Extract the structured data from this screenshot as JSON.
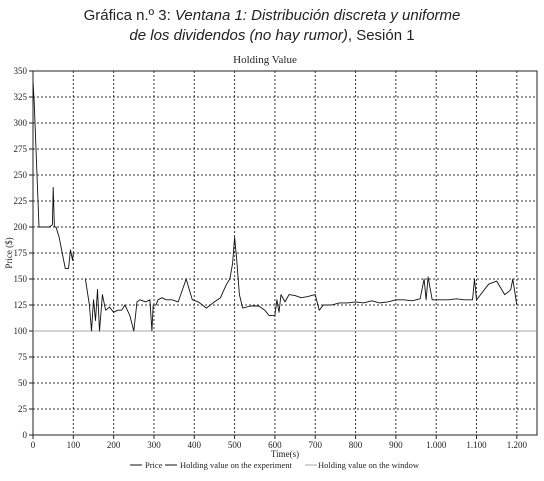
{
  "figure": {
    "line1_prefix": "Gráfica n.º 3: ",
    "line1_italic": "Ventana 1: Distribución discreta y uniforme",
    "line2_italic": "de los dividendos (no hay rumor)",
    "line2_suffix": ", Sesión 1"
  },
  "chart_data": {
    "type": "line",
    "title": "Holding Value",
    "xlabel": "Time(s)",
    "ylabel": "Price ($)",
    "xlim": [
      0,
      1250
    ],
    "ylim": [
      0,
      350
    ],
    "x_ticks": [
      0,
      100,
      200,
      300,
      400,
      500,
      600,
      700,
      800,
      900,
      1000,
      1100,
      1200
    ],
    "x_tick_labels": [
      "0",
      "100",
      "200",
      "300",
      "400",
      "500",
      "600",
      "700",
      "800",
      "900",
      "1.000",
      "1.100",
      "1.200"
    ],
    "y_ticks": [
      0,
      25,
      50,
      75,
      100,
      125,
      150,
      175,
      200,
      225,
      250,
      275,
      300,
      325,
      350
    ],
    "grid": true,
    "legend_position": "bottom",
    "series": [
      {
        "name": "Price",
        "color": "#111111",
        "x": [
          0,
          3,
          8,
          15,
          20,
          40,
          48,
          50,
          53,
          57,
          65,
          70,
          80,
          88,
          93,
          98,
          100
        ],
        "y": [
          340,
          320,
          270,
          200,
          200,
          200,
          202,
          238,
          200,
          200,
          190,
          180,
          160,
          160,
          178,
          168,
          175
        ]
      },
      {
        "name": "Holding value on the experiment",
        "color": "#111111",
        "x": [
          130,
          140,
          145,
          150,
          155,
          160,
          165,
          172,
          180,
          190,
          200,
          210,
          220,
          228,
          240,
          250,
          258,
          265,
          280,
          290,
          295,
          298,
          300,
          305,
          310,
          320,
          330,
          345,
          360,
          380,
          395,
          410,
          430,
          450,
          465,
          480,
          488,
          495,
          500,
          505,
          512,
          520,
          540,
          560,
          575,
          585,
          600,
          605,
          610,
          615,
          625,
          635,
          650,
          665,
          680,
          700,
          710,
          720,
          740,
          760,
          780,
          800,
          820,
          840,
          860,
          880,
          900,
          920,
          940,
          960,
          970,
          975,
          980,
          990,
          1010,
          1030,
          1050,
          1070,
          1090,
          1095,
          1100,
          1110,
          1130,
          1150,
          1170,
          1180,
          1185,
          1190,
          1200
        ],
        "y": [
          150,
          125,
          100,
          130,
          110,
          140,
          100,
          135,
          120,
          123,
          118,
          120,
          120,
          125,
          115,
          100,
          128,
          130,
          128,
          130,
          100,
          125,
          125,
          125,
          130,
          132,
          130,
          130,
          128,
          150,
          130,
          128,
          122,
          128,
          132,
          145,
          150,
          165,
          190,
          170,
          135,
          122,
          124,
          124,
          120,
          115,
          115,
          130,
          118,
          135,
          128,
          135,
          134,
          132,
          133,
          135,
          120,
          125,
          125,
          127,
          127,
          128,
          127,
          129,
          127,
          128,
          130,
          130,
          129,
          131,
          150,
          130,
          152,
          130,
          130,
          130,
          131,
          130,
          130,
          150,
          130,
          135,
          145,
          148,
          135,
          138,
          140,
          150,
          125
        ]
      },
      {
        "name": "Holding value on the window",
        "color": "#aaaaaa",
        "x": [
          0,
          1250
        ],
        "y": [
          100,
          100
        ]
      }
    ]
  }
}
